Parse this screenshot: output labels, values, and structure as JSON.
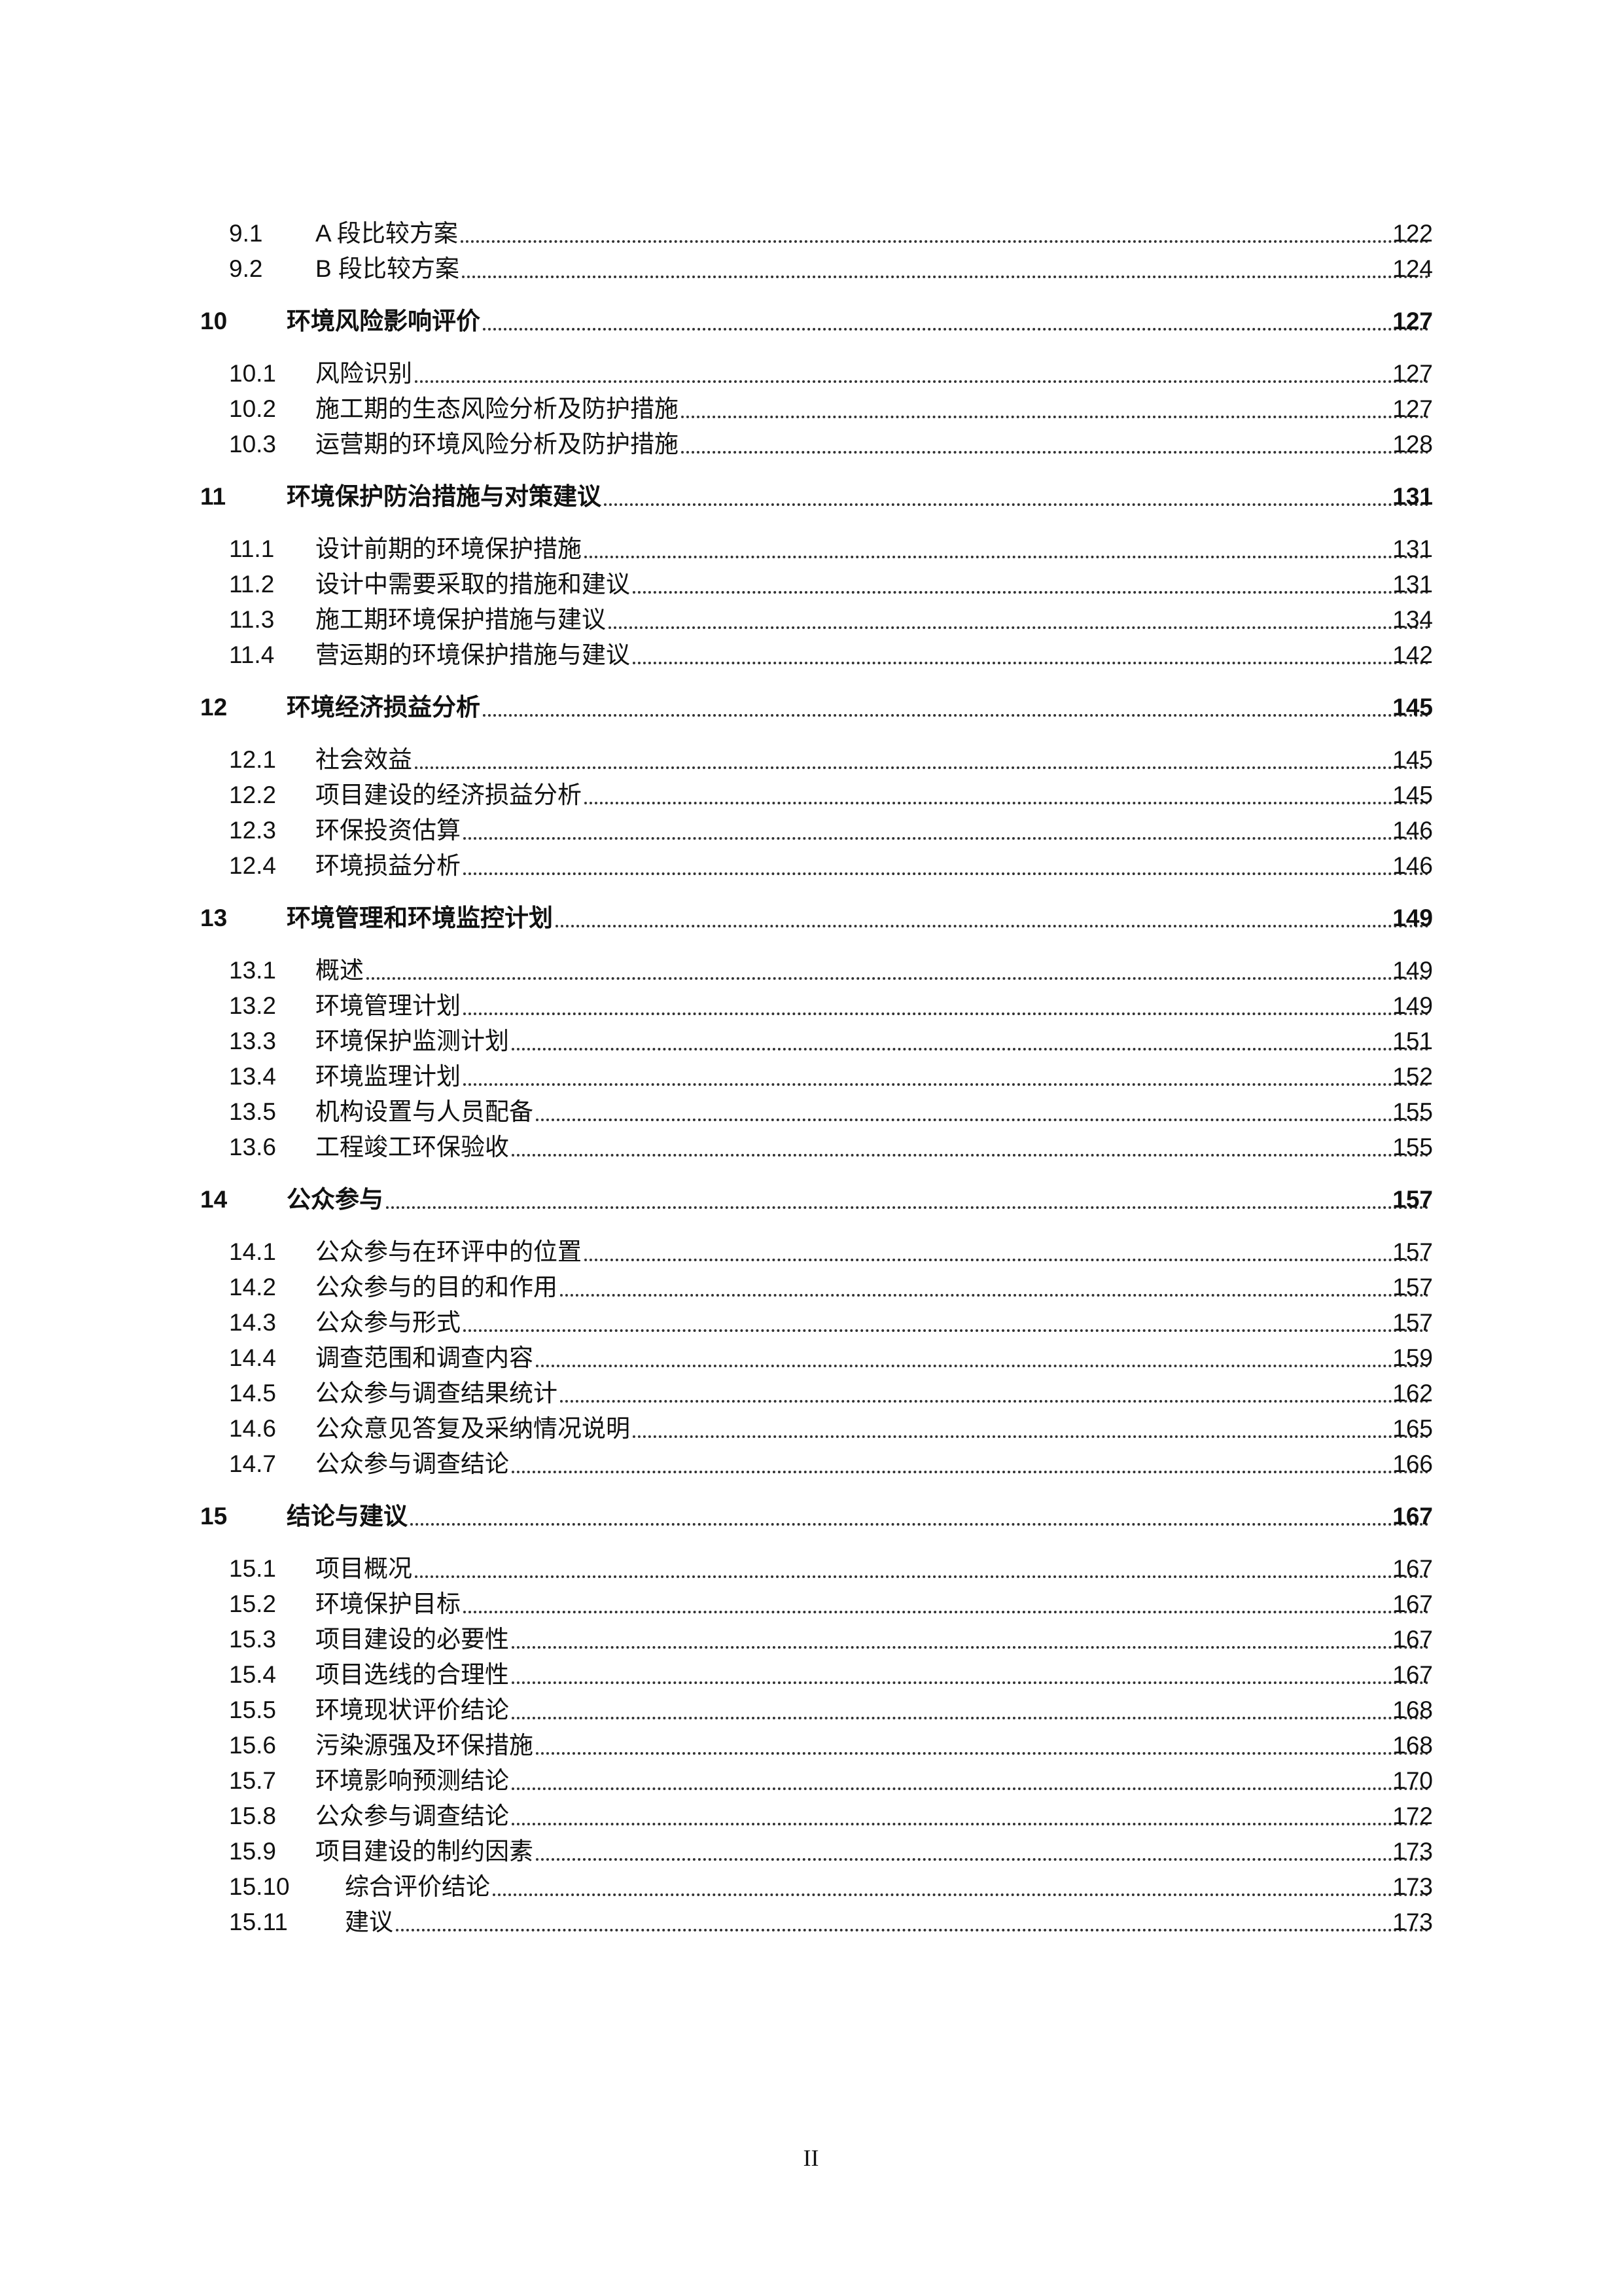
{
  "toc": [
    {
      "num": "9.1",
      "title": "A 段比较方案",
      "page": "122",
      "level": 2
    },
    {
      "num": "9.2",
      "title": "B 段比较方案",
      "page": "124",
      "level": 2
    },
    {
      "num": "10",
      "title": "环境风险影响评价",
      "page": "127",
      "level": 1
    },
    {
      "num": "10.1",
      "title": "风险识别",
      "page": "127",
      "level": 2
    },
    {
      "num": "10.2",
      "title": "施工期的生态风险分析及防护措施",
      "page": "127",
      "level": 2
    },
    {
      "num": "10.3",
      "title": "运营期的环境风险分析及防护措施",
      "page": "128",
      "level": 2
    },
    {
      "num": "11",
      "title": "环境保护防治措施与对策建议",
      "page": "131",
      "level": 1
    },
    {
      "num": "11.1",
      "title": "设计前期的环境保护措施",
      "page": "131",
      "level": 2
    },
    {
      "num": "11.2",
      "title": "设计中需要采取的措施和建议",
      "page": "131",
      "level": 2
    },
    {
      "num": "11.3",
      "title": "施工期环境保护措施与建议",
      "page": "134",
      "level": 2
    },
    {
      "num": "11.4",
      "title": "营运期的环境保护措施与建议",
      "page": "142",
      "level": 2
    },
    {
      "num": "12",
      "title": "环境经济损益分析",
      "page": "145",
      "level": 1
    },
    {
      "num": "12.1",
      "title": "社会效益",
      "page": "145",
      "level": 2
    },
    {
      "num": "12.2",
      "title": "项目建设的经济损益分析",
      "page": "145",
      "level": 2
    },
    {
      "num": "12.3",
      "title": "环保投资估算",
      "page": "146",
      "level": 2
    },
    {
      "num": "12.4",
      "title": "环境损益分析",
      "page": "146",
      "level": 2
    },
    {
      "num": "13",
      "title": "环境管理和环境监控计划",
      "page": "149",
      "level": 1
    },
    {
      "num": "13.1",
      "title": "概述",
      "page": "149",
      "level": 2
    },
    {
      "num": "13.2",
      "title": "环境管理计划",
      "page": "149",
      "level": 2
    },
    {
      "num": "13.3",
      "title": "环境保护监测计划",
      "page": "151",
      "level": 2
    },
    {
      "num": "13.4",
      "title": "环境监理计划",
      "page": "152",
      "level": 2
    },
    {
      "num": "13.5",
      "title": "机构设置与人员配备",
      "page": "155",
      "level": 2
    },
    {
      "num": "13.6",
      "title": "工程竣工环保验收",
      "page": "155",
      "level": 2
    },
    {
      "num": "14",
      "title": "公众参与",
      "page": "157",
      "level": 1
    },
    {
      "num": "14.1",
      "title": "公众参与在环评中的位置",
      "page": "157",
      "level": 2
    },
    {
      "num": "14.2",
      "title": "公众参与的目的和作用",
      "page": "157",
      "level": 2
    },
    {
      "num": "14.3",
      "title": "公众参与形式",
      "page": "157",
      "level": 2
    },
    {
      "num": "14.4",
      "title": "调查范围和调查内容",
      "page": "159",
      "level": 2
    },
    {
      "num": "14.5",
      "title": "公众参与调查结果统计",
      "page": "162",
      "level": 2
    },
    {
      "num": "14.6",
      "title": "公众意见答复及采纳情况说明",
      "page": "165",
      "level": 2
    },
    {
      "num": "14.7",
      "title": "公众参与调查结论",
      "page": "166",
      "level": 2
    },
    {
      "num": "15",
      "title": "结论与建议",
      "page": "167",
      "level": 1
    },
    {
      "num": "15.1",
      "title": "项目概况",
      "page": "167",
      "level": 2
    },
    {
      "num": "15.2",
      "title": "环境保护目标",
      "page": "167",
      "level": 2
    },
    {
      "num": "15.3",
      "title": "项目建设的必要性",
      "page": "167",
      "level": 2
    },
    {
      "num": "15.4",
      "title": "项目选线的合理性",
      "page": "167",
      "level": 2
    },
    {
      "num": "15.5",
      "title": "环境现状评价结论",
      "page": "168",
      "level": 2
    },
    {
      "num": "15.6",
      "title": "污染源强及环保措施",
      "page": "168",
      "level": 2
    },
    {
      "num": "15.7",
      "title": "环境影响预测结论",
      "page": "170",
      "level": 2
    },
    {
      "num": "15.8",
      "title": "公众参与调查结论",
      "page": "172",
      "level": 2
    },
    {
      "num": "15.9",
      "title": "项目建设的制约因素",
      "page": "173",
      "level": 2
    },
    {
      "num": "15.10",
      "title": "综合评价结论",
      "page": "173",
      "level": 3
    },
    {
      "num": "15.11",
      "title": "建议",
      "page": "173",
      "level": 3
    }
  ],
  "page_number": "II"
}
